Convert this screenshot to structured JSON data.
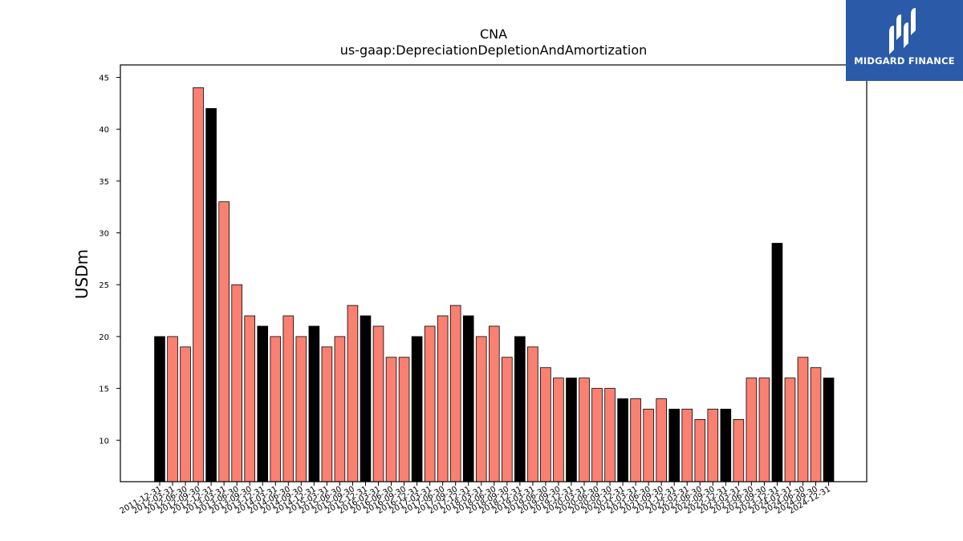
{
  "logo": {
    "text": "MIDGARD FINANCE",
    "icon": "midgard-logo-icon",
    "background": "#2a5aa8"
  },
  "chart_data": {
    "type": "bar",
    "title": "CNA",
    "subtitle": "us-gaap:DepreciationDepletionAndAmortization",
    "xlabel": "",
    "ylabel": "USDm",
    "ylim": [
      6,
      46.2
    ],
    "yticks": [
      "10",
      "15",
      "20",
      "25",
      "30",
      "35",
      "40",
      "45"
    ],
    "grid": false,
    "colors": {
      "fiscal_year_end": "#000000",
      "quarter": "#fa8072",
      "edge": "#000000"
    },
    "categories": [
      "2011-12-31",
      "2012-03-31",
      "2012-06-30",
      "2012-09-30",
      "2012-12-31",
      "2013-03-31",
      "2013-06-30",
      "2013-09-30",
      "2013-12-31",
      "2014-03-31",
      "2014-06-30",
      "2014-09-30",
      "2014-12-31",
      "2015-03-31",
      "2015-06-30",
      "2015-09-30",
      "2015-12-31",
      "2016-03-31",
      "2016-06-30",
      "2016-09-30",
      "2016-12-31",
      "2017-03-31",
      "2017-06-30",
      "2017-09-30",
      "2017-12-31",
      "2018-03-31",
      "2018-06-30",
      "2018-09-30",
      "2018-12-31",
      "2019-03-31",
      "2019-06-30",
      "2019-09-30",
      "2019-12-31",
      "2020-03-31",
      "2020-06-30",
      "2020-09-30",
      "2020-12-31",
      "2021-03-31",
      "2021-06-30",
      "2021-09-30",
      "2021-12-31",
      "2022-03-31",
      "2022-06-30",
      "2022-09-30",
      "2022-12-31",
      "2023-03-31",
      "2023-06-30",
      "2023-09-30",
      "2023-12-31",
      "2024-03-31",
      "2024-06-30",
      "2024-09-30",
      "2024-12-31"
    ],
    "values": [
      20,
      20,
      19,
      44,
      42,
      33,
      25,
      22,
      21,
      20,
      22,
      20,
      21,
      19,
      20,
      23,
      22,
      21,
      18,
      18,
      20,
      21,
      22,
      23,
      22,
      20,
      21,
      18,
      20,
      19,
      17,
      16,
      16,
      16,
      15,
      15,
      14,
      14,
      13,
      14,
      13,
      13,
      12,
      13,
      13,
      12,
      16,
      16,
      29,
      16,
      18,
      17,
      16
    ]
  }
}
